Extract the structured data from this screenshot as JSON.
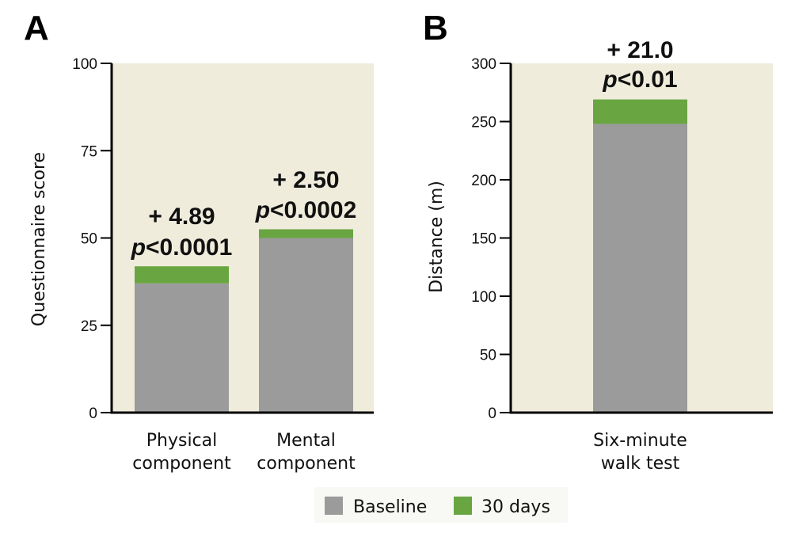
{
  "colors": {
    "plot_bg": "#efecdc",
    "baseline": "#9b9b9b",
    "thirty_days": "#69a641",
    "axis": "#000000",
    "legend_bg": "#f8f8f4"
  },
  "legend": {
    "items": [
      {
        "label": "Baseline",
        "series": "baseline"
      },
      {
        "label": "30 days",
        "series": "thirty_days"
      }
    ]
  },
  "chart_data": [
    {
      "panel": "A",
      "type": "bar",
      "stacked": true,
      "title": "",
      "xlabel": "",
      "ylabel": "Questionnaire score",
      "ylim": [
        0,
        100
      ],
      "yticks": [
        0,
        25,
        50,
        75,
        100
      ],
      "grid": false,
      "categories": [
        {
          "label_lines": [
            "Physical",
            "component"
          ]
        },
        {
          "label_lines": [
            "Mental",
            "component"
          ]
        }
      ],
      "series": [
        {
          "name": "Baseline",
          "key": "baseline",
          "values": [
            37.0,
            50.0
          ]
        },
        {
          "name": "30 days",
          "key": "thirty_days",
          "values": [
            41.9,
            52.5
          ]
        }
      ],
      "annotations": [
        {
          "category_index": 0,
          "change": "+ 4.89",
          "p_prefix": "p",
          "p_rest": "<0.0001"
        },
        {
          "category_index": 1,
          "change": "+ 2.50",
          "p_prefix": "p",
          "p_rest": "<0.0002"
        }
      ],
      "legend_position": "bottom-center"
    },
    {
      "panel": "B",
      "type": "bar",
      "stacked": true,
      "title": "",
      "xlabel": "",
      "ylabel": "Distance (m)",
      "ylim": [
        0,
        300
      ],
      "yticks": [
        0,
        50,
        100,
        150,
        200,
        250,
        300
      ],
      "grid": false,
      "categories": [
        {
          "label_lines": [
            "Six-minute",
            "walk test"
          ]
        }
      ],
      "series": [
        {
          "name": "Baseline",
          "key": "baseline",
          "values": [
            248
          ]
        },
        {
          "name": "30 days",
          "key": "thirty_days",
          "values": [
            269
          ]
        }
      ],
      "annotations": [
        {
          "category_index": 0,
          "change": "+ 21.0",
          "p_prefix": "p",
          "p_rest": "<0.01"
        }
      ],
      "legend_position": "bottom-center"
    }
  ]
}
